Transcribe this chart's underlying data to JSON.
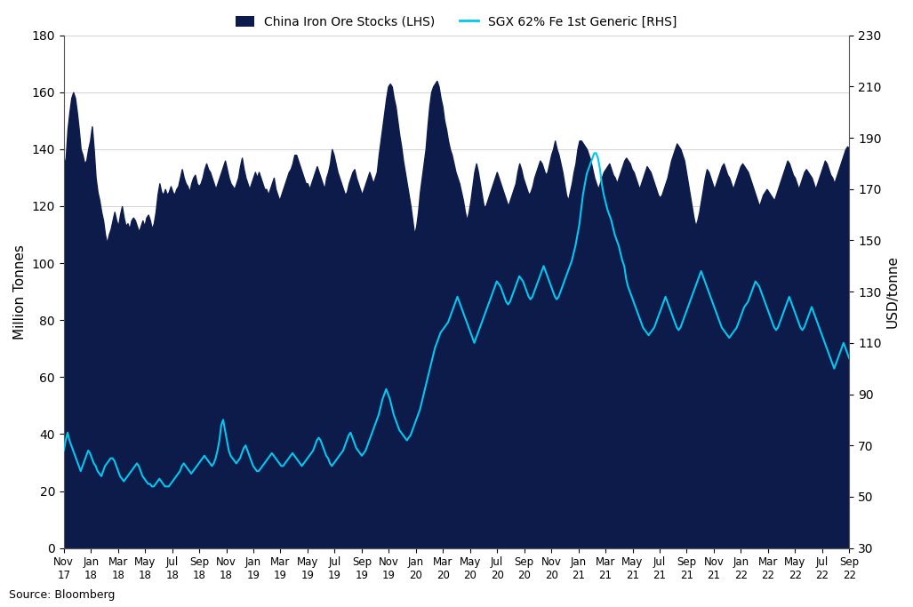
{
  "title": "",
  "legend_lhs": "China Iron Ore Stocks (LHS)",
  "legend_rhs": "SGX 62% Fe 1st Generic [RHS]",
  "ylabel_left": "Million Tonnes",
  "ylabel_right": "USD/tonne",
  "source": "Source: Bloomberg",
  "ylim_left": [
    0,
    180
  ],
  "ylim_right": [
    30,
    230
  ],
  "yticks_left": [
    0,
    20,
    40,
    60,
    80,
    100,
    120,
    140,
    160,
    180
  ],
  "yticks_right": [
    30,
    50,
    70,
    90,
    110,
    130,
    150,
    170,
    190,
    210,
    230
  ],
  "background_color": "#ffffff",
  "fill_color": "#0d1b4b",
  "line_color": "#00c8f0",
  "grid_color": "#aaaaaa",
  "x_tick_labels": [
    "Nov\n17",
    "Jan\n18",
    "Mar\n18",
    "May\n18",
    "Jul\n18",
    "Sep\n18",
    "Nov\n18",
    "Jan\n19",
    "Mar\n19",
    "May\n19",
    "Jul\n19",
    "Sep\n19",
    "Nov\n19",
    "Jan\n20",
    "Mar\n20",
    "May\n20",
    "Jul\n20",
    "Sep\n20",
    "Nov\n20",
    "Jan\n21",
    "Mar\n21",
    "May\n21",
    "Jul\n21",
    "Sep\n21",
    "Nov\n21",
    "Jan\n22",
    "Mar\n22",
    "May\n22",
    "Jul\n22",
    "Sep\n22"
  ],
  "iron_ore_stocks": [
    134,
    137,
    147,
    153,
    158,
    160,
    158,
    153,
    147,
    140,
    138,
    135,
    136,
    140,
    143,
    148,
    140,
    130,
    125,
    122,
    118,
    115,
    110,
    107,
    110,
    112,
    115,
    118,
    115,
    113,
    117,
    120,
    116,
    113,
    114,
    112,
    115,
    116,
    115,
    113,
    111,
    113,
    115,
    113,
    116,
    117,
    115,
    112,
    114,
    118,
    124,
    128,
    125,
    124,
    126,
    124,
    125,
    127,
    125,
    124,
    126,
    127,
    130,
    133,
    130,
    128,
    127,
    125,
    128,
    130,
    131,
    128,
    127,
    128,
    130,
    133,
    135,
    133,
    132,
    130,
    128,
    126,
    128,
    130,
    132,
    134,
    136,
    133,
    130,
    128,
    127,
    126,
    128,
    130,
    134,
    137,
    133,
    130,
    128,
    126,
    128,
    130,
    132,
    130,
    132,
    130,
    128,
    126,
    126,
    124,
    126,
    128,
    130,
    126,
    124,
    122,
    124,
    126,
    128,
    130,
    132,
    133,
    135,
    138,
    138,
    136,
    134,
    132,
    130,
    128,
    128,
    126,
    128,
    130,
    132,
    134,
    132,
    130,
    128,
    126,
    130,
    132,
    135,
    140,
    138,
    135,
    132,
    130,
    128,
    126,
    124,
    125,
    128,
    130,
    132,
    133,
    130,
    128,
    126,
    124,
    126,
    128,
    130,
    132,
    130,
    128,
    130,
    132,
    138,
    143,
    148,
    153,
    158,
    162,
    163,
    162,
    158,
    155,
    150,
    145,
    141,
    136,
    132,
    128,
    124,
    120,
    115,
    110,
    113,
    118,
    125,
    130,
    135,
    140,
    148,
    155,
    160,
    162,
    163,
    164,
    162,
    158,
    155,
    150,
    147,
    143,
    140,
    138,
    135,
    132,
    130,
    128,
    125,
    122,
    118,
    115,
    118,
    122,
    127,
    132,
    135,
    132,
    128,
    124,
    120,
    120,
    122,
    124,
    126,
    128,
    130,
    132,
    130,
    128,
    126,
    124,
    122,
    120,
    122,
    124,
    126,
    128,
    132,
    135,
    133,
    130,
    128,
    126,
    124,
    125,
    127,
    130,
    132,
    134,
    136,
    135,
    133,
    131,
    132,
    135,
    138,
    140,
    143,
    140,
    138,
    135,
    132,
    128,
    124,
    122,
    125,
    128,
    132,
    135,
    140,
    143,
    143,
    142,
    141,
    140,
    138,
    136,
    133,
    130,
    128,
    126,
    128,
    130,
    132,
    133,
    134,
    135,
    133,
    131,
    130,
    128,
    130,
    132,
    134,
    136,
    137,
    136,
    135,
    133,
    132,
    130,
    128,
    126,
    128,
    130,
    132,
    134,
    133,
    132,
    130,
    128,
    126,
    124,
    123,
    124,
    126,
    128,
    130,
    133,
    136,
    138,
    140,
    142,
    141,
    140,
    138,
    136,
    132,
    128,
    124,
    120,
    116,
    113,
    115,
    118,
    122,
    126,
    130,
    133,
    132,
    130,
    128,
    126,
    128,
    130,
    132,
    134,
    135,
    133,
    131,
    130,
    128,
    126,
    128,
    130,
    132,
    134,
    135,
    134,
    133,
    132,
    130,
    128,
    126,
    124,
    122,
    120,
    122,
    124,
    125,
    126,
    125,
    124,
    123,
    122,
    124,
    126,
    128,
    130,
    132,
    134,
    136,
    135,
    133,
    131,
    130,
    128,
    126,
    128,
    130,
    132,
    133,
    132,
    131,
    130,
    128,
    126,
    128,
    130,
    132,
    134,
    136,
    135,
    133,
    131,
    130,
    128,
    130,
    132,
    134,
    136,
    138,
    140,
    141,
    140
  ],
  "sgx_price": [
    68,
    72,
    75,
    72,
    70,
    68,
    66,
    64,
    62,
    60,
    62,
    64,
    66,
    68,
    67,
    65,
    63,
    62,
    60,
    59,
    58,
    60,
    62,
    63,
    64,
    65,
    65,
    64,
    62,
    60,
    58,
    57,
    56,
    57,
    58,
    59,
    60,
    61,
    62,
    63,
    62,
    60,
    58,
    57,
    56,
    55,
    55,
    54,
    54,
    55,
    56,
    57,
    56,
    55,
    54,
    54,
    54,
    55,
    56,
    57,
    58,
    59,
    60,
    62,
    63,
    62,
    61,
    60,
    59,
    60,
    61,
    62,
    63,
    64,
    65,
    66,
    65,
    64,
    63,
    62,
    63,
    65,
    68,
    72,
    78,
    80,
    76,
    72,
    68,
    66,
    65,
    64,
    63,
    64,
    65,
    67,
    69,
    70,
    68,
    66,
    64,
    62,
    61,
    60,
    60,
    61,
    62,
    63,
    64,
    65,
    66,
    67,
    66,
    65,
    64,
    63,
    62,
    62,
    63,
    64,
    65,
    66,
    67,
    66,
    65,
    64,
    63,
    62,
    63,
    64,
    65,
    66,
    67,
    68,
    70,
    72,
    73,
    72,
    70,
    68,
    66,
    65,
    63,
    62,
    63,
    64,
    65,
    66,
    67,
    68,
    70,
    72,
    74,
    75,
    73,
    71,
    69,
    68,
    67,
    66,
    67,
    68,
    70,
    72,
    74,
    76,
    78,
    80,
    82,
    85,
    88,
    90,
    92,
    90,
    88,
    85,
    82,
    80,
    78,
    76,
    75,
    74,
    73,
    72,
    73,
    74,
    76,
    78,
    80,
    82,
    84,
    87,
    90,
    93,
    96,
    99,
    102,
    105,
    108,
    110,
    112,
    114,
    115,
    116,
    117,
    118,
    120,
    122,
    124,
    126,
    128,
    126,
    124,
    122,
    120,
    118,
    116,
    114,
    112,
    110,
    112,
    114,
    116,
    118,
    120,
    122,
    124,
    126,
    128,
    130,
    132,
    134,
    133,
    132,
    130,
    128,
    126,
    125,
    126,
    128,
    130,
    132,
    134,
    136,
    135,
    134,
    132,
    130,
    128,
    127,
    128,
    130,
    132,
    134,
    136,
    138,
    140,
    138,
    136,
    134,
    132,
    130,
    128,
    127,
    128,
    130,
    132,
    134,
    136,
    138,
    140,
    142,
    145,
    148,
    152,
    156,
    162,
    168,
    172,
    176,
    178,
    180,
    182,
    184,
    184,
    182,
    178,
    172,
    168,
    165,
    162,
    160,
    158,
    155,
    152,
    150,
    148,
    145,
    142,
    140,
    135,
    132,
    130,
    128,
    126,
    124,
    122,
    120,
    118,
    116,
    115,
    114,
    113,
    114,
    115,
    116,
    118,
    120,
    122,
    124,
    126,
    128,
    126,
    124,
    122,
    120,
    118,
    116,
    115,
    116,
    118,
    120,
    122,
    124,
    126,
    128,
    130,
    132,
    134,
    136,
    138,
    136,
    134,
    132,
    130,
    128,
    126,
    124,
    122,
    120,
    118,
    116,
    115,
    114,
    113,
    112,
    113,
    114,
    115,
    116,
    118,
    120,
    122,
    124,
    125,
    126,
    128,
    130,
    132,
    134,
    133,
    132,
    130,
    128,
    126,
    124,
    122,
    120,
    118,
    116,
    115,
    116,
    118,
    120,
    122,
    124,
    126,
    128,
    126,
    124,
    122,
    120,
    118,
    116,
    115,
    116,
    118,
    120,
    122,
    124,
    122,
    120,
    118,
    116,
    114,
    112,
    110,
    108,
    106,
    104,
    102,
    100,
    102,
    104,
    106,
    108,
    110,
    108,
    106,
    104
  ]
}
